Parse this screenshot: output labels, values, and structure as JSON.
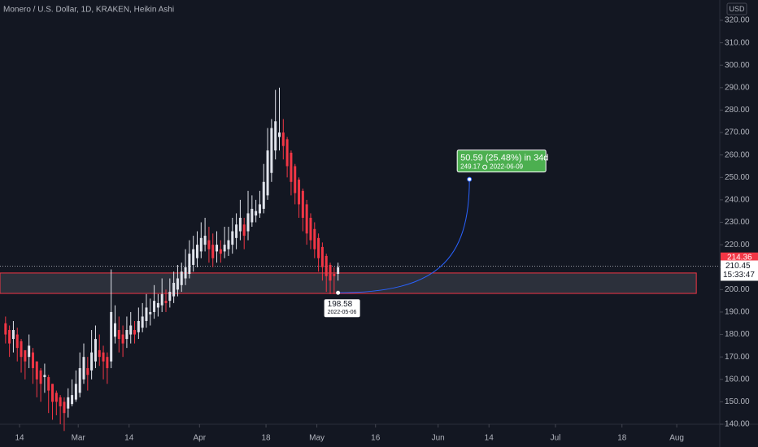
{
  "chart_data": {
    "type": "candlestick",
    "title": "Monero / U.S. Dollar, 1D, KRAKEN, Heikin Ashi",
    "currency": "USD",
    "up_color": "#e0e3eb",
    "down_color": "#f23645",
    "x": [
      "2022-02-10",
      "2022-02-11",
      "2022-02-12",
      "2022-02-13",
      "2022-02-14",
      "2022-02-15",
      "2022-02-16",
      "2022-02-17",
      "2022-02-18",
      "2022-02-19",
      "2022-02-20",
      "2022-02-21",
      "2022-02-22",
      "2022-02-23",
      "2022-02-24",
      "2022-02-25",
      "2022-02-26",
      "2022-02-27",
      "2022-02-28",
      "2022-03-01",
      "2022-03-02",
      "2022-03-03",
      "2022-03-04",
      "2022-03-05",
      "2022-03-06",
      "2022-03-07",
      "2022-03-08",
      "2022-03-09",
      "2022-03-10",
      "2022-03-11",
      "2022-03-12",
      "2022-03-13",
      "2022-03-14",
      "2022-03-15",
      "2022-03-16",
      "2022-03-17",
      "2022-03-18",
      "2022-03-19",
      "2022-03-20",
      "2022-03-21",
      "2022-03-22",
      "2022-03-23",
      "2022-03-24",
      "2022-03-25",
      "2022-03-26",
      "2022-03-27",
      "2022-03-28",
      "2022-03-29",
      "2022-03-30",
      "2022-03-31",
      "2022-04-01",
      "2022-04-02",
      "2022-04-03",
      "2022-04-04",
      "2022-04-05",
      "2022-04-06",
      "2022-04-07",
      "2022-04-08",
      "2022-04-09",
      "2022-04-10",
      "2022-04-11",
      "2022-04-12",
      "2022-04-13",
      "2022-04-14",
      "2022-04-15",
      "2022-04-16",
      "2022-04-17",
      "2022-04-18",
      "2022-04-19",
      "2022-04-20",
      "2022-04-21",
      "2022-04-22",
      "2022-04-23",
      "2022-04-24",
      "2022-04-25",
      "2022-04-26",
      "2022-04-27",
      "2022-04-28",
      "2022-04-29",
      "2022-04-30",
      "2022-05-01",
      "2022-05-02",
      "2022-05-03",
      "2022-05-04",
      "2022-05-05",
      "2022-05-06"
    ],
    "open": [
      185,
      182,
      178,
      180,
      177,
      173,
      170,
      172,
      168,
      164,
      161,
      161,
      158,
      154,
      152,
      150,
      147,
      149,
      151,
      154,
      160,
      165,
      164,
      168,
      173,
      172,
      170,
      168,
      179,
      182,
      180,
      178,
      180,
      182,
      181,
      183,
      186,
      189,
      190,
      192,
      193,
      195,
      195,
      197,
      200,
      202,
      205,
      207,
      211,
      214,
      217,
      220,
      222,
      220,
      217,
      218,
      217,
      218,
      220,
      223,
      226,
      229,
      226,
      230,
      233,
      234,
      236,
      242,
      252,
      262,
      268,
      270,
      267,
      261,
      255,
      249,
      244,
      238,
      232,
      227,
      223,
      219,
      215,
      211,
      207,
      207
    ],
    "high": [
      188,
      184,
      186,
      183,
      178,
      172,
      180,
      174,
      168,
      165,
      167,
      162,
      158,
      155,
      153,
      152,
      156,
      160,
      164,
      172,
      176,
      170,
      182,
      184,
      180,
      175,
      172,
      209,
      193,
      188,
      184,
      188,
      190,
      186,
      192,
      194,
      198,
      196,
      202,
      198,
      205,
      200,
      205,
      208,
      211,
      212,
      218,
      222,
      224,
      226,
      230,
      232,
      228,
      225,
      226,
      222,
      228,
      228,
      232,
      234,
      240,
      232,
      244,
      242,
      240,
      244,
      256,
      272,
      276,
      289,
      290,
      276,
      268,
      262,
      256,
      250,
      245,
      240,
      234,
      230,
      225,
      221,
      216,
      212,
      210,
      212
    ],
    "low": [
      176,
      170,
      172,
      168,
      163,
      160,
      165,
      158,
      152,
      150,
      154,
      145,
      142,
      144,
      140,
      137,
      143,
      148,
      150,
      152,
      158,
      155,
      160,
      165,
      166,
      160,
      158,
      165,
      176,
      172,
      170,
      174,
      176,
      176,
      178,
      181,
      183,
      184,
      187,
      188,
      190,
      190,
      192,
      194,
      197,
      199,
      202,
      205,
      208,
      210,
      214,
      217,
      212,
      210,
      212,
      212,
      214,
      215,
      216,
      218,
      222,
      218,
      222,
      228,
      230,
      232,
      234,
      240,
      248,
      258,
      262,
      258,
      250,
      242,
      238,
      232,
      226,
      220,
      218,
      214,
      208,
      204,
      199,
      198,
      198,
      204
    ],
    "close": [
      180,
      176,
      182,
      174,
      170,
      168,
      175,
      165,
      160,
      158,
      162,
      155,
      150,
      150,
      148,
      145,
      152,
      153,
      158,
      165,
      170,
      162,
      172,
      178,
      170,
      168,
      165,
      190,
      185,
      178,
      176,
      182,
      184,
      180,
      186,
      188,
      192,
      190,
      195,
      194,
      198,
      194,
      199,
      203,
      205,
      208,
      210,
      216,
      218,
      220,
      223,
      224,
      218,
      214,
      220,
      216,
      220,
      222,
      226,
      229,
      232,
      224,
      234,
      236,
      235,
      238,
      248,
      262,
      272,
      275,
      270,
      264,
      255,
      248,
      243,
      238,
      232,
      225,
      222,
      218,
      214,
      210,
      206,
      204,
      206,
      210
    ],
    "ylim": [
      140,
      320
    ],
    "yticks": [
      {
        "value": 140,
        "label": "140.00"
      },
      {
        "value": 150,
        "label": "150.00"
      },
      {
        "value": 160,
        "label": "160.00"
      },
      {
        "value": 170,
        "label": "170.00"
      },
      {
        "value": 180,
        "label": "180.00"
      },
      {
        "value": 190,
        "label": "190.00"
      },
      {
        "value": 200,
        "label": "200.00"
      },
      {
        "value": 210,
        "label": "210.00"
      },
      {
        "value": 220,
        "label": "220.00"
      },
      {
        "value": 230,
        "label": "230.00"
      },
      {
        "value": 240,
        "label": "240.00"
      },
      {
        "value": 250,
        "label": "250.00"
      },
      {
        "value": 260,
        "label": "260.00"
      },
      {
        "value": 270,
        "label": "270.00"
      },
      {
        "value": 280,
        "label": "280.00"
      },
      {
        "value": 290,
        "label": "290.00"
      },
      {
        "value": 300,
        "label": "300.00"
      },
      {
        "value": 310,
        "label": "310.00"
      },
      {
        "value": 320,
        "label": "320.00"
      }
    ],
    "xlim": [
      "2022-02-09",
      "2022-08-12"
    ],
    "xticks": [
      {
        "value": "2022-02-14",
        "label": "14"
      },
      {
        "value": "2022-03-01",
        "label": "Mar"
      },
      {
        "value": "2022-03-14",
        "label": "14"
      },
      {
        "value": "2022-04-01",
        "label": "Apr"
      },
      {
        "value": "2022-04-18",
        "label": "18"
      },
      {
        "value": "2022-05-01",
        "label": "May"
      },
      {
        "value": "2022-05-16",
        "label": "16"
      },
      {
        "value": "2022-06-01",
        "label": "Jun"
      },
      {
        "value": "2022-06-14",
        "label": "14"
      },
      {
        "value": "2022-07-01",
        "label": "Jul"
      },
      {
        "value": "2022-07-18",
        "label": "18"
      },
      {
        "value": "2022-08-01",
        "label": "Aug"
      }
    ],
    "zone": {
      "low": 198.3,
      "high": 207.4,
      "start": "2022-02-09",
      "end": "2022-08-06"
    },
    "high_price": {
      "value": 214.36,
      "label": "214.36"
    },
    "last_price": {
      "value": 210.45,
      "label": "210.45"
    },
    "countdown": "15:33:47",
    "projection": {
      "start": {
        "value": 198.58,
        "label": "198.58",
        "date": "2022-05-06"
      },
      "end": {
        "value": 249.17,
        "label": "249.17",
        "date": "2022-06-09"
      },
      "text": "50.59 (25.48%) in 34d"
    }
  }
}
